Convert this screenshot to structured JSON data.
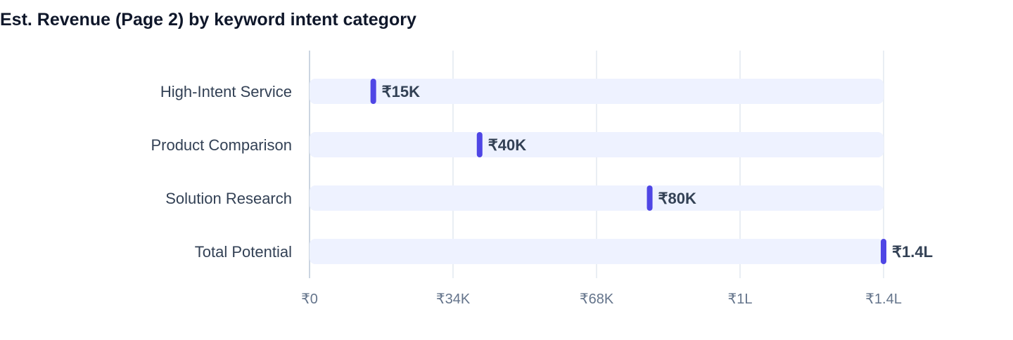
{
  "chart_data": {
    "type": "bar",
    "title": "Est. Revenue (Page 2) by keyword intent category",
    "xlabel": "",
    "ylabel": "",
    "categories": [
      "High-Intent Service",
      "Product Comparison",
      "Solution Research",
      "Total Potential"
    ],
    "values": [
      15000,
      40000,
      80000,
      135000
    ],
    "value_labels": [
      "₹15K",
      "₹40K",
      "₹80K",
      "₹1.4L"
    ],
    "xlim": [
      0,
      135000
    ],
    "x_ticks": [
      0,
      33750,
      67500,
      101250,
      135000
    ],
    "x_tick_labels": [
      "₹0",
      "₹34K",
      "₹68K",
      "₹1L",
      "₹1.4L"
    ],
    "orientation": "horizontal",
    "grid": true,
    "legend": "none",
    "colors": {
      "marker": "#4f46e5",
      "track": "#eef2ff",
      "grid": "#e2e8f0",
      "title": "#0f172a",
      "category_text": "#334155",
      "tick_text": "#64748b"
    }
  }
}
